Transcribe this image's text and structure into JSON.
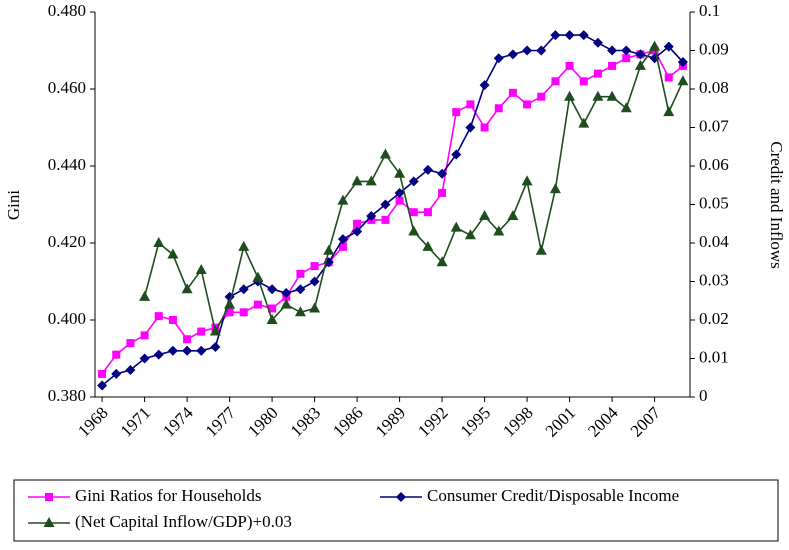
{
  "chart_data": {
    "type": "line",
    "y_label": "Gini",
    "y2_label": "Credit and Inflows",
    "categories": [
      "1968",
      null,
      null,
      "1971",
      null,
      null,
      "1974",
      null,
      null,
      "1977",
      null,
      null,
      "1980",
      null,
      null,
      "1983",
      null,
      null,
      "1986",
      null,
      null,
      "1989",
      null,
      null,
      "1992",
      null,
      null,
      "1995",
      null,
      null,
      "1998",
      null,
      null,
      "2001",
      null,
      null,
      "2004",
      null,
      null,
      "2007",
      null,
      null
    ],
    "ylim": [
      0.38,
      0.48
    ],
    "yticks": [
      {
        "value": 0.38,
        "label": "0.380"
      },
      {
        "value": 0.4,
        "label": "0.400"
      },
      {
        "value": 0.42,
        "label": "0.420"
      },
      {
        "value": 0.44,
        "label": "0.440"
      },
      {
        "value": 0.46,
        "label": "0.460"
      },
      {
        "value": 0.48,
        "label": "0.480"
      }
    ],
    "y2lim": [
      0,
      0.1
    ],
    "y2ticks": [
      0,
      0.01,
      0.02,
      0.03,
      0.04,
      0.05,
      0.06,
      0.07,
      0.08,
      0.09,
      0.1
    ],
    "legend": "bottom",
    "series": [
      {
        "name": "Gini Ratios for Households",
        "color": "#ff00ff",
        "marker": "square",
        "values": [
          0.386,
          0.391,
          0.394,
          0.396,
          0.401,
          0.4,
          0.395,
          0.397,
          0.398,
          0.402,
          0.402,
          0.404,
          0.403,
          0.406,
          0.412,
          0.414,
          0.415,
          0.419,
          0.425,
          0.426,
          0.426,
          0.431,
          0.428,
          0.428,
          0.433,
          0.454,
          0.456,
          0.45,
          0.455,
          0.459,
          0.456,
          0.458,
          0.462,
          0.466,
          0.462,
          0.464,
          0.466,
          0.468,
          0.469,
          0.47,
          0.463,
          0.466
        ]
      },
      {
        "name": "Consumer Credit/Disposable Income",
        "color": "#000080",
        "marker": "diamond",
        "axis": "y2",
        "values": [
          0.003,
          0.006,
          0.007,
          0.01,
          0.011,
          0.012,
          0.012,
          0.012,
          0.013,
          0.026,
          0.028,
          0.03,
          0.028,
          0.027,
          0.028,
          0.03,
          0.035,
          0.041,
          0.043,
          0.047,
          0.05,
          0.053,
          0.056,
          0.059,
          0.058,
          0.063,
          0.07,
          0.081,
          0.088,
          0.089,
          0.09,
          0.09,
          0.094,
          0.094,
          0.094,
          0.092,
          0.09,
          0.09,
          0.089,
          0.088,
          0.091,
          0.087
        ]
      },
      {
        "name": "(Net Capital Inflow/GDP)+0.03",
        "color": "#1f4d1f",
        "marker": "triangle",
        "axis": "y2",
        "values": [
          null,
          null,
          null,
          0.026,
          0.04,
          0.037,
          0.028,
          0.033,
          0.017,
          0.024,
          0.039,
          0.031,
          0.02,
          0.024,
          0.022,
          0.023,
          0.038,
          0.051,
          0.056,
          0.056,
          0.063,
          0.058,
          0.043,
          0.039,
          0.035,
          0.044,
          0.042,
          0.047,
          0.043,
          0.047,
          0.056,
          0.038,
          0.054,
          0.078,
          0.071,
          0.078,
          0.078,
          0.075,
          0.086,
          0.091,
          0.074,
          0.082
        ]
      }
    ]
  }
}
